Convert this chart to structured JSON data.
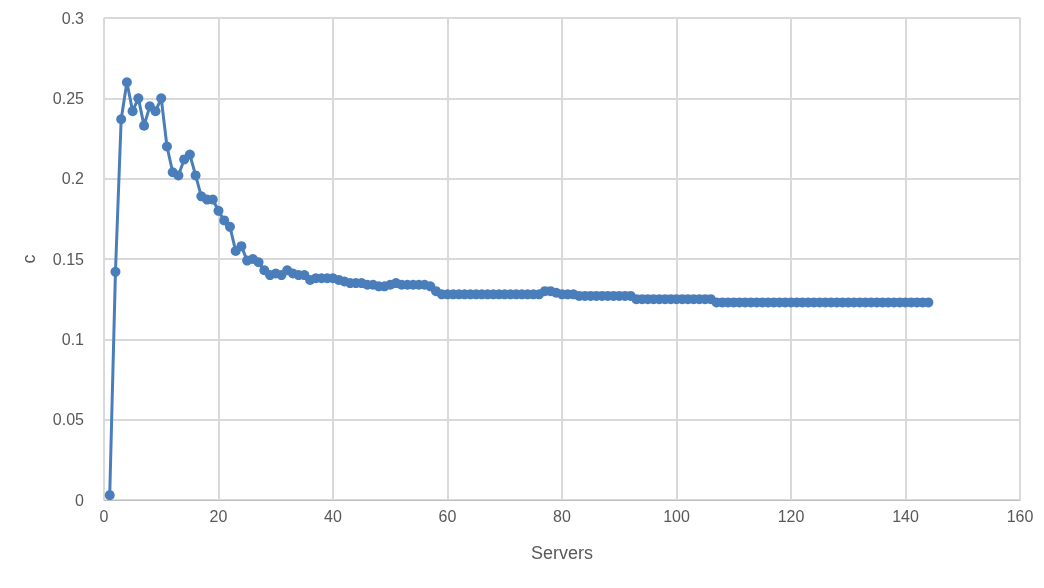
{
  "chart_data": {
    "type": "line",
    "xlabel": "Servers",
    "ylabel": "c",
    "xlim": [
      0,
      160
    ],
    "xticks": [
      0,
      20,
      40,
      60,
      80,
      100,
      120,
      140,
      160
    ],
    "ylim": [
      0,
      0.3
    ],
    "yticks": [
      0,
      0.05,
      0.1,
      0.15,
      0.2,
      0.25,
      0.3
    ],
    "grid": true,
    "marker": "circle",
    "line_style": "solid",
    "x": [
      1,
      2,
      3,
      4,
      5,
      6,
      7,
      8,
      9,
      10,
      11,
      12,
      13,
      14,
      15,
      16,
      17,
      18,
      19,
      20,
      21,
      22,
      23,
      24,
      25,
      26,
      27,
      28,
      29,
      30,
      31,
      32,
      33,
      34,
      35,
      36,
      37,
      38,
      39,
      40,
      41,
      42,
      43,
      44,
      45,
      46,
      47,
      48,
      49,
      50,
      51,
      52,
      53,
      54,
      55,
      56,
      57,
      58,
      59,
      60,
      61,
      62,
      63,
      64,
      65,
      66,
      67,
      68,
      69,
      70,
      71,
      72,
      73,
      74,
      75,
      76,
      77,
      78,
      79,
      80,
      81,
      82,
      83,
      84,
      85,
      86,
      87,
      88,
      89,
      90,
      91,
      92,
      93,
      94,
      95,
      96,
      97,
      98,
      99,
      100,
      101,
      102,
      103,
      104,
      105,
      106,
      107,
      108,
      109,
      110,
      111,
      112,
      113,
      114,
      115,
      116,
      117,
      118,
      119,
      120,
      121,
      122,
      123,
      124,
      125,
      126,
      127,
      128,
      129,
      130,
      131,
      132,
      133,
      134,
      135,
      136,
      137,
      138,
      139,
      140,
      141,
      142,
      143,
      144
    ],
    "series": [
      {
        "color": "#4a7ebb",
        "values": [
          0.003,
          0.142,
          0.237,
          0.26,
          0.242,
          0.25,
          0.233,
          0.245,
          0.242,
          0.25,
          0.22,
          0.204,
          0.202,
          0.212,
          0.215,
          0.202,
          0.189,
          0.187,
          0.187,
          0.18,
          0.174,
          0.17,
          0.155,
          0.158,
          0.149,
          0.15,
          0.148,
          0.143,
          0.14,
          0.141,
          0.14,
          0.143,
          0.141,
          0.14,
          0.14,
          0.137,
          0.138,
          0.138,
          0.138,
          0.138,
          0.137,
          0.136,
          0.135,
          0.135,
          0.135,
          0.134,
          0.134,
          0.133,
          0.133,
          0.134,
          0.135,
          0.134,
          0.134,
          0.134,
          0.134,
          0.134,
          0.133,
          0.13,
          0.128,
          0.128,
          0.128,
          0.128,
          0.128,
          0.128,
          0.128,
          0.128,
          0.128,
          0.128,
          0.128,
          0.128,
          0.128,
          0.128,
          0.128,
          0.128,
          0.128,
          0.128,
          0.13,
          0.13,
          0.129,
          0.128,
          0.128,
          0.128,
          0.127,
          0.127,
          0.127,
          0.127,
          0.127,
          0.127,
          0.127,
          0.127,
          0.127,
          0.127,
          0.125,
          0.125,
          0.125,
          0.125,
          0.125,
          0.125,
          0.125,
          0.125,
          0.125,
          0.125,
          0.125,
          0.125,
          0.125,
          0.125,
          0.123,
          0.123,
          0.123,
          0.123,
          0.123,
          0.123,
          0.123,
          0.123,
          0.123,
          0.123,
          0.123,
          0.123,
          0.123,
          0.123,
          0.123,
          0.123,
          0.123,
          0.123,
          0.123,
          0.123,
          0.123,
          0.123,
          0.123,
          0.123,
          0.123,
          0.123,
          0.123,
          0.123,
          0.123,
          0.123,
          0.123,
          0.123,
          0.123,
          0.123,
          0.123,
          0.123,
          0.123,
          0.123
        ]
      }
    ]
  }
}
